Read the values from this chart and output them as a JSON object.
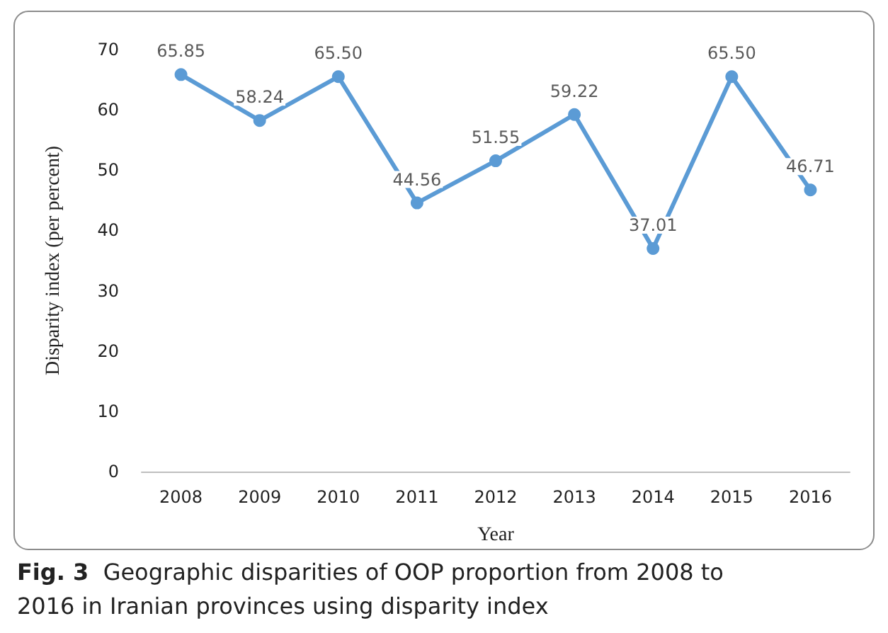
{
  "chart_data": {
    "type": "line",
    "xlabel": "Year",
    "ylabel": "Disparity index (per percent)",
    "categories": [
      "2008",
      "2009",
      "2010",
      "2011",
      "2012",
      "2013",
      "2014",
      "2015",
      "2016"
    ],
    "values": [
      65.85,
      58.24,
      65.5,
      44.56,
      51.55,
      59.22,
      37.01,
      65.5,
      46.71
    ],
    "value_labels": [
      "65.85",
      "58.24",
      "65.50",
      "44.56",
      "51.55",
      "59.22",
      "37.01",
      "65.50",
      "46.71"
    ],
    "color": "#5b9bd5",
    "marker": "circle",
    "line_style": "solid",
    "grid": false,
    "ylim": [
      0,
      70
    ],
    "yticks": [
      0,
      10,
      20,
      30,
      40,
      50,
      60,
      70
    ],
    "annotations": [
      "Fig. 3",
      "Geographic disparities of OOP proportion from 2008 to 2016 in Iranian provinces using disparity index"
    ]
  }
}
